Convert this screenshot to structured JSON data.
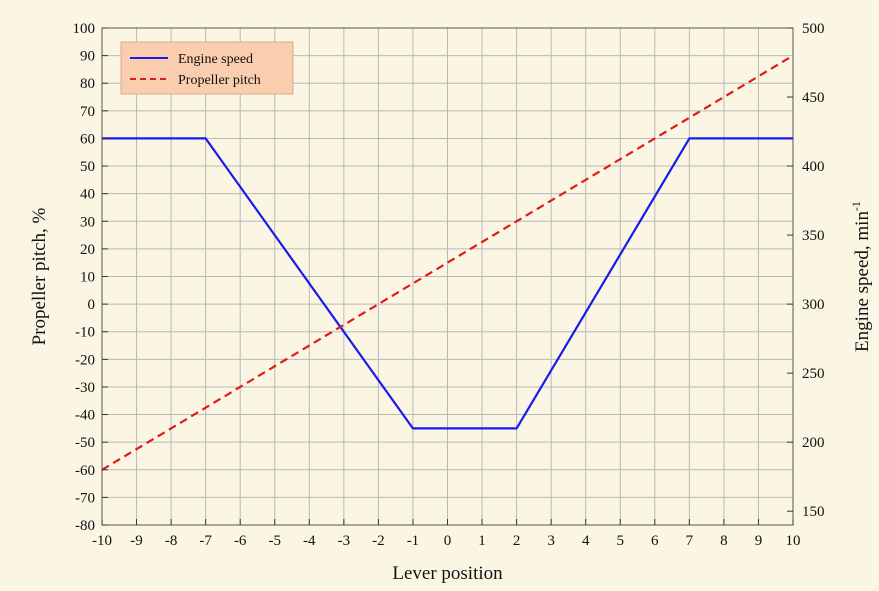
{
  "chart_data": {
    "type": "line",
    "xlabel": "Lever position",
    "ylabel_left": "Propeller pitch, %",
    "ylabel_right_base": "Engine speed, min",
    "ylabel_right_sup": "-1",
    "xlim": [
      -10,
      10
    ],
    "ylim_left": [
      -80,
      100
    ],
    "ylim_right": [
      140,
      500
    ],
    "x_ticks": [
      -10,
      -9,
      -8,
      -7,
      -6,
      -5,
      -4,
      -3,
      -2,
      -1,
      0,
      1,
      2,
      3,
      4,
      5,
      6,
      7,
      8,
      9,
      10
    ],
    "y_left_ticks": [
      -80,
      -70,
      -60,
      -50,
      -40,
      -30,
      -20,
      -10,
      0,
      10,
      20,
      30,
      40,
      50,
      60,
      70,
      80,
      90,
      100
    ],
    "y_right_ticks": [
      150,
      200,
      250,
      300,
      350,
      400,
      450,
      500
    ],
    "grid": true,
    "legend_position": "top-left",
    "series": [
      {
        "name": "Engine speed",
        "axis": "right",
        "color": "#1a1aee",
        "style": "solid",
        "x": [
          -10,
          -7,
          -1,
          2,
          7,
          10
        ],
        "y": [
          420,
          420,
          210,
          210,
          420,
          420
        ]
      },
      {
        "name": "Propeller pitch",
        "axis": "left",
        "color": "#e01b1b",
        "style": "dashed",
        "x": [
          -10,
          10
        ],
        "y": [
          -60,
          90
        ]
      }
    ]
  },
  "colors": {
    "background": "#fbf6e3",
    "grid": "#b9b9b9",
    "legend_bg": "#f9cdae"
  }
}
